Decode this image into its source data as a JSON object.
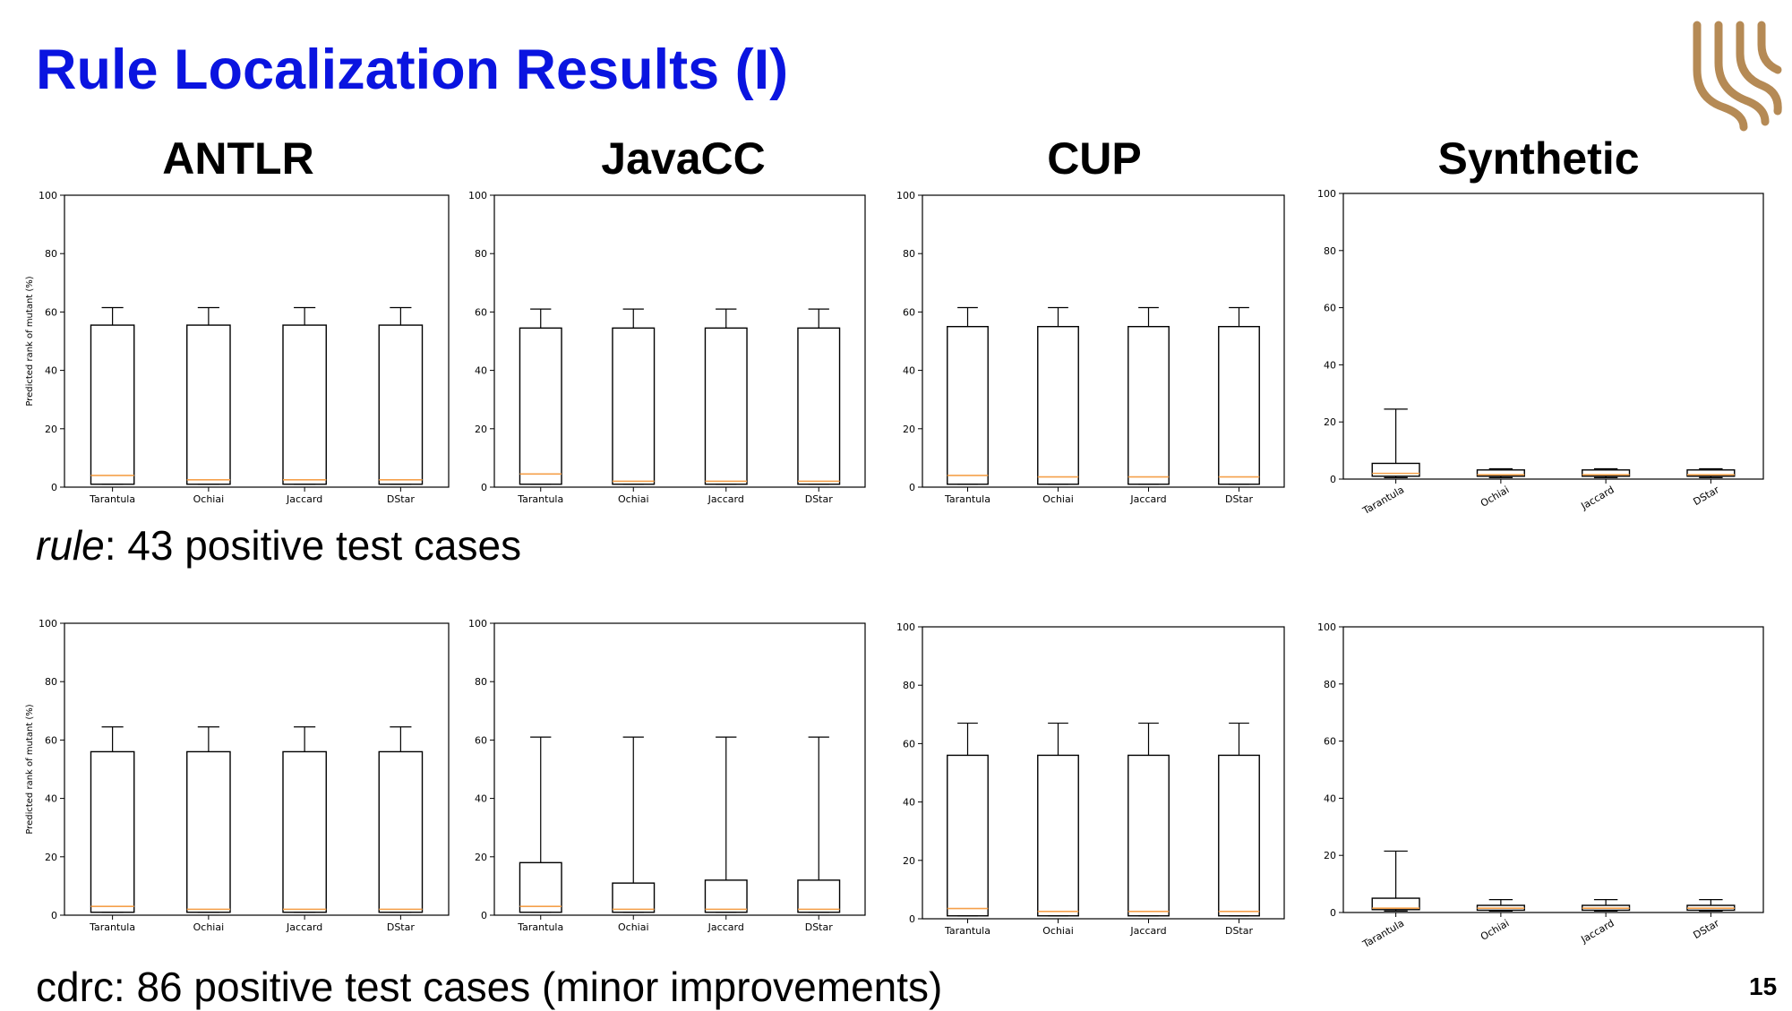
{
  "slide": {
    "title": "Rule Localization Results (I)",
    "page_number": "15",
    "columns": [
      "ANTLR",
      "JavaCC",
      "CUP",
      "Synthetic"
    ],
    "caption_rule_term": "rule",
    "caption_rule_rest": ": 43 positive test cases",
    "caption_cdrc": "cdrc: 86 positive test cases (minor improvements)"
  },
  "colors": {
    "title": "#0a14e0",
    "median": "#f5a04a",
    "logo": "#b58a55",
    "box": "#000000"
  },
  "chart_data": [
    {
      "type": "boxplot",
      "row": "rule",
      "column": "ANTLR",
      "ylabel": "Predicted rank of mutant (%)",
      "ylim": [
        0,
        100
      ],
      "yticks": [
        0,
        20,
        40,
        60,
        80,
        100
      ],
      "categories": [
        "Tarantula",
        "Ochiai",
        "Jaccard",
        "DStar"
      ],
      "rotate_labels": false,
      "boxes": [
        {
          "whislo": 1,
          "q1": 1,
          "med": 4,
          "q3": 55.5,
          "whishi": 61.5
        },
        {
          "whislo": 1,
          "q1": 1,
          "med": 2.5,
          "q3": 55.5,
          "whishi": 61.5
        },
        {
          "whislo": 1,
          "q1": 1,
          "med": 2.5,
          "q3": 55.5,
          "whishi": 61.5
        },
        {
          "whislo": 1,
          "q1": 1,
          "med": 2.5,
          "q3": 55.5,
          "whishi": 61.5
        }
      ]
    },
    {
      "type": "boxplot",
      "row": "rule",
      "column": "JavaCC",
      "ylabel": "",
      "ylim": [
        0,
        100
      ],
      "yticks": [
        0,
        20,
        40,
        60,
        80,
        100
      ],
      "categories": [
        "Tarantula",
        "Ochiai",
        "Jaccard",
        "DStar"
      ],
      "rotate_labels": false,
      "boxes": [
        {
          "whislo": 1,
          "q1": 1,
          "med": 4.5,
          "q3": 54.5,
          "whishi": 61
        },
        {
          "whislo": 1,
          "q1": 1,
          "med": 2,
          "q3": 54.5,
          "whishi": 61
        },
        {
          "whislo": 1,
          "q1": 1,
          "med": 2,
          "q3": 54.5,
          "whishi": 61
        },
        {
          "whislo": 1,
          "q1": 1,
          "med": 2,
          "q3": 54.5,
          "whishi": 61
        }
      ]
    },
    {
      "type": "boxplot",
      "row": "rule",
      "column": "CUP",
      "ylabel": "",
      "ylim": [
        0,
        100
      ],
      "yticks": [
        0,
        20,
        40,
        60,
        80,
        100
      ],
      "categories": [
        "Tarantula",
        "Ochiai",
        "Jaccard",
        "DStar"
      ],
      "rotate_labels": false,
      "boxes": [
        {
          "whislo": 1,
          "q1": 1,
          "med": 4,
          "q3": 55,
          "whishi": 61.5
        },
        {
          "whislo": 1,
          "q1": 1,
          "med": 3.5,
          "q3": 55,
          "whishi": 61.5
        },
        {
          "whislo": 1,
          "q1": 1,
          "med": 3.5,
          "q3": 55,
          "whishi": 61.5
        },
        {
          "whislo": 1,
          "q1": 1,
          "med": 3.5,
          "q3": 55,
          "whishi": 61.5
        }
      ]
    },
    {
      "type": "boxplot",
      "row": "rule",
      "column": "Synthetic",
      "ylabel": "",
      "ylim": [
        0,
        100
      ],
      "yticks": [
        0,
        20,
        40,
        60,
        80,
        100
      ],
      "categories": [
        "Tarantula",
        "Ochiai",
        "Jaccard",
        "DStar"
      ],
      "rotate_labels": true,
      "boxes": [
        {
          "whislo": 0.5,
          "q1": 1,
          "med": 2,
          "q3": 5.5,
          "whishi": 24.5
        },
        {
          "whislo": 0.5,
          "q1": 1,
          "med": 1.5,
          "q3": 3.2,
          "whishi": 3.6
        },
        {
          "whislo": 0.5,
          "q1": 1,
          "med": 1.5,
          "q3": 3.2,
          "whishi": 3.6
        },
        {
          "whislo": 0.5,
          "q1": 1,
          "med": 1.5,
          "q3": 3.2,
          "whishi": 3.6
        }
      ]
    },
    {
      "type": "boxplot",
      "row": "cdrc",
      "column": "ANTLR",
      "ylabel": "Predicted rank of mutant (%)",
      "ylim": [
        0,
        100
      ],
      "yticks": [
        0,
        20,
        40,
        60,
        80,
        100
      ],
      "categories": [
        "Tarantula",
        "Ochiai",
        "Jaccard",
        "DStar"
      ],
      "rotate_labels": false,
      "boxes": [
        {
          "whislo": 1,
          "q1": 1,
          "med": 3,
          "q3": 56,
          "whishi": 64.5
        },
        {
          "whislo": 1,
          "q1": 1,
          "med": 2,
          "q3": 56,
          "whishi": 64.5
        },
        {
          "whislo": 1,
          "q1": 1,
          "med": 2,
          "q3": 56,
          "whishi": 64.5
        },
        {
          "whislo": 1,
          "q1": 1,
          "med": 2,
          "q3": 56,
          "whishi": 64.5
        }
      ]
    },
    {
      "type": "boxplot",
      "row": "cdrc",
      "column": "JavaCC",
      "ylabel": "",
      "ylim": [
        0,
        100
      ],
      "yticks": [
        0,
        20,
        40,
        60,
        80,
        100
      ],
      "categories": [
        "Tarantula",
        "Ochiai",
        "Jaccard",
        "DStar"
      ],
      "rotate_labels": false,
      "boxes": [
        {
          "whislo": 1,
          "q1": 1,
          "med": 3,
          "q3": 18,
          "whishi": 61
        },
        {
          "whislo": 1,
          "q1": 1,
          "med": 2,
          "q3": 11,
          "whishi": 61
        },
        {
          "whislo": 1,
          "q1": 1,
          "med": 2,
          "q3": 12,
          "whishi": 61
        },
        {
          "whislo": 1,
          "q1": 1,
          "med": 2,
          "q3": 12,
          "whishi": 61
        }
      ]
    },
    {
      "type": "boxplot",
      "row": "cdrc",
      "column": "CUP",
      "ylabel": "",
      "ylim": [
        0,
        100
      ],
      "yticks": [
        0,
        20,
        40,
        60,
        80,
        100
      ],
      "categories": [
        "Tarantula",
        "Ochiai",
        "Jaccard",
        "DStar"
      ],
      "rotate_labels": false,
      "boxes": [
        {
          "whislo": 1,
          "q1": 1,
          "med": 3.5,
          "q3": 56,
          "whishi": 67
        },
        {
          "whislo": 1,
          "q1": 1,
          "med": 2.5,
          "q3": 56,
          "whishi": 67
        },
        {
          "whislo": 1,
          "q1": 1,
          "med": 2.5,
          "q3": 56,
          "whishi": 67
        },
        {
          "whislo": 1,
          "q1": 1,
          "med": 2.5,
          "q3": 56,
          "whishi": 67
        }
      ]
    },
    {
      "type": "boxplot",
      "row": "cdrc",
      "column": "Synthetic",
      "ylabel": "",
      "ylim": [
        0,
        100
      ],
      "yticks": [
        0,
        20,
        40,
        60,
        80,
        100
      ],
      "categories": [
        "Tarantula",
        "Ochiai",
        "Jaccard",
        "DStar"
      ],
      "rotate_labels": true,
      "boxes": [
        {
          "whislo": 0.5,
          "q1": 1,
          "med": 1.5,
          "q3": 5,
          "whishi": 21.5
        },
        {
          "whislo": 0.5,
          "q1": 0.8,
          "med": 1.5,
          "q3": 2.5,
          "whishi": 4.5
        },
        {
          "whislo": 0.5,
          "q1": 0.8,
          "med": 1.5,
          "q3": 2.5,
          "whishi": 4.5
        },
        {
          "whislo": 0.5,
          "q1": 0.8,
          "med": 1.5,
          "q3": 2.5,
          "whishi": 4.5
        }
      ]
    }
  ]
}
